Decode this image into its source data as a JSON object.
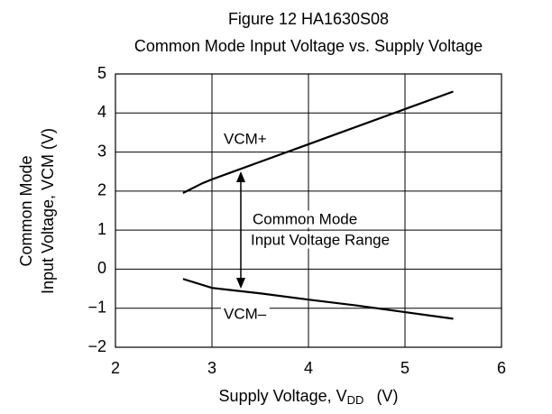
{
  "chart_data": {
    "type": "line",
    "title": "Figure 12  HA1630S08",
    "subtitle": "Common Mode Input Voltage vs. Supply Voltage",
    "ylabel": [
      "Common Mode",
      "Input Voltage,  VCM   (V)"
    ],
    "xlabel": [
      "Supply Voltage,  V",
      "DD",
      "(V)"
    ],
    "xlim": [
      2,
      6
    ],
    "xticks": [
      2,
      3,
      4,
      5,
      6
    ],
    "ylim": [
      -2,
      5
    ],
    "yticks": [
      {
        "value": -2,
        "label": "−2"
      },
      {
        "value": -1,
        "label": "−1"
      },
      0,
      1,
      2,
      3,
      4,
      5
    ],
    "grid": true,
    "series": [
      {
        "name": "VCM+",
        "color": "#000000",
        "x": [
          2.7,
          2.9,
          3.0,
          3.5,
          4.0,
          4.5,
          5.0,
          5.5
        ],
        "values": [
          1.95,
          2.2,
          2.3,
          2.75,
          3.2,
          3.65,
          4.1,
          4.55
        ]
      },
      {
        "name": "VCM–",
        "color": "#000000",
        "x": [
          2.7,
          3.0,
          3.5,
          4.0,
          4.5,
          5.0,
          5.5
        ],
        "values": [
          -0.25,
          -0.48,
          -0.62,
          -0.78,
          -0.93,
          -1.1,
          -1.27
        ]
      }
    ],
    "annotations": [
      "Common Mode",
      "Input Voltage Range"
    ]
  }
}
